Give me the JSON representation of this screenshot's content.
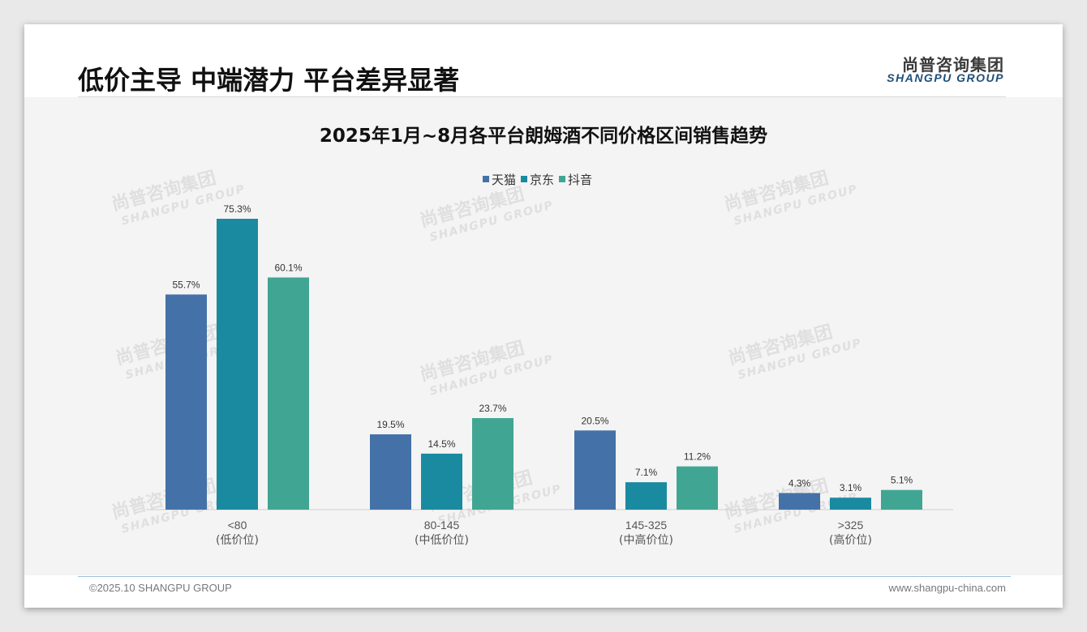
{
  "slide": {
    "title": "低价主导 中端潜力 平台差异显著",
    "logo_cn": "尚普咨询集团",
    "logo_en": "SHANGPU GROUP",
    "footer_left": "©2025.10 SHANGPU GROUP",
    "footer_right": "www.shangpu-china.com",
    "watermark_cn": "尚普咨询集团",
    "watermark_en": "SHANGPU GROUP"
  },
  "colors": {
    "tmall": "#4472a8",
    "jd": "#1a8aa0",
    "douyin": "#40a693"
  },
  "chart_data": {
    "type": "bar",
    "title": "2025年1月~8月各平台朗姆酒不同价格区间销售趋势",
    "categories": [
      "<80",
      "80-145",
      "145-325",
      ">325"
    ],
    "category_sublabels": [
      "(低价位)",
      "(中低价位)",
      "(中高价位)",
      "(高价位)"
    ],
    "series": [
      {
        "name": "天猫",
        "values": [
          55.7,
          19.5,
          20.5,
          4.3
        ]
      },
      {
        "name": "京东",
        "values": [
          75.3,
          14.5,
          7.1,
          3.1
        ]
      },
      {
        "name": "抖音",
        "values": [
          60.1,
          23.7,
          11.2,
          5.1
        ]
      }
    ],
    "value_suffix": "%",
    "ylim": [
      0,
      80
    ],
    "legend_position": "top-center",
    "grid": false
  }
}
